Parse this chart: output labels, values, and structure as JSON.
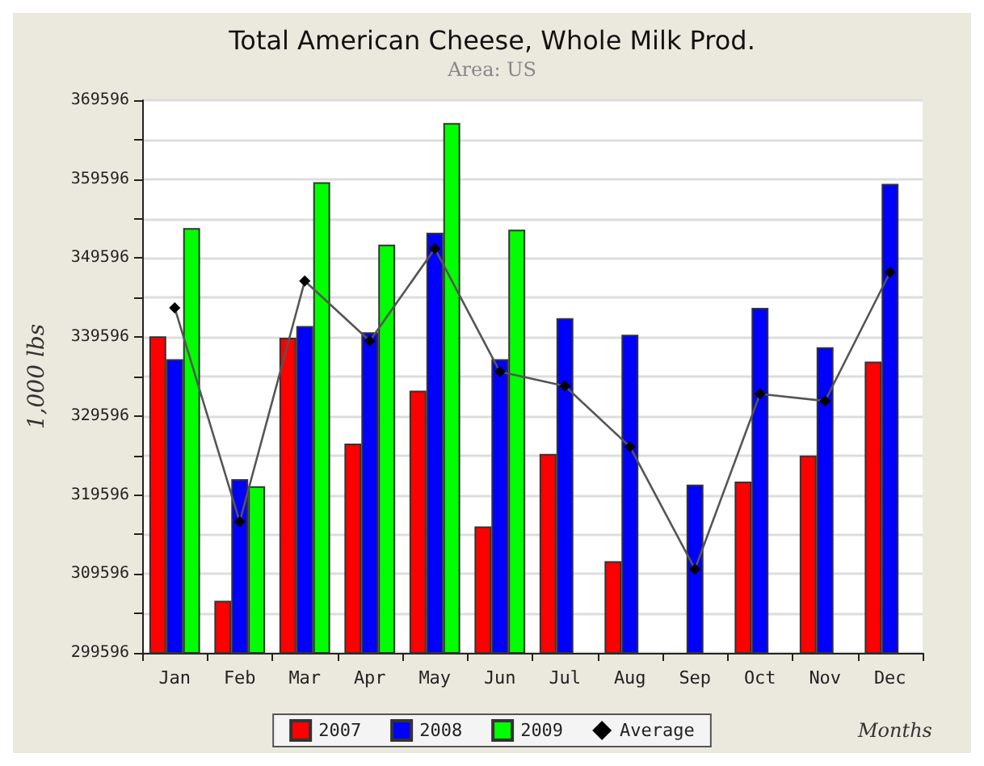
{
  "chart_data": {
    "type": "bar",
    "title": "Total American Cheese, Whole Milk Prod.",
    "subtitle": "Area: US",
    "xlabel": "Months",
    "ylabel": "1,000 lbs",
    "categories": [
      "Jan",
      "Feb",
      "Mar",
      "Apr",
      "May",
      "Jun",
      "Jul",
      "Aug",
      "Sep",
      "Oct",
      "Nov",
      "Dec"
    ],
    "series": [
      {
        "name": "2007",
        "color": "#ff0000",
        "values": [
          339700,
          306200,
          339500,
          326100,
          332800,
          315600,
          324800,
          311200,
          null,
          321300,
          324600,
          336500
        ]
      },
      {
        "name": "2008",
        "color": "#0000ff",
        "values": [
          336800,
          321600,
          341000,
          340200,
          352800,
          336800,
          342000,
          339900,
          320900,
          343300,
          338300,
          359000
        ]
      },
      {
        "name": "2009",
        "color": "#00ff00",
        "values": [
          353400,
          320700,
          359200,
          351300,
          366700,
          353200,
          null,
          null,
          null,
          null,
          null,
          null
        ]
      },
      {
        "name": "Average",
        "type": "line",
        "color": "#000000",
        "marker": "diamond",
        "values": [
          343300,
          316200,
          346700,
          339100,
          350800,
          335200,
          333400,
          325700,
          310200,
          332400,
          331500,
          347800
        ]
      }
    ],
    "ylim": [
      299596,
      369596
    ],
    "yticks": [
      299596,
      {
        "value": 304596,
        "label": null
      },
      309596,
      {
        "value": 314596,
        "label": null
      },
      319596,
      {
        "value": 324596,
        "label": null
      },
      329596,
      {
        "value": 334596,
        "label": null
      },
      339596,
      {
        "value": 344596,
        "label": null
      },
      349596,
      {
        "value": 354596,
        "label": null
      },
      359596,
      {
        "value": 364596,
        "label": null
      },
      369596
    ],
    "grid": "y",
    "legend": "bottom"
  }
}
